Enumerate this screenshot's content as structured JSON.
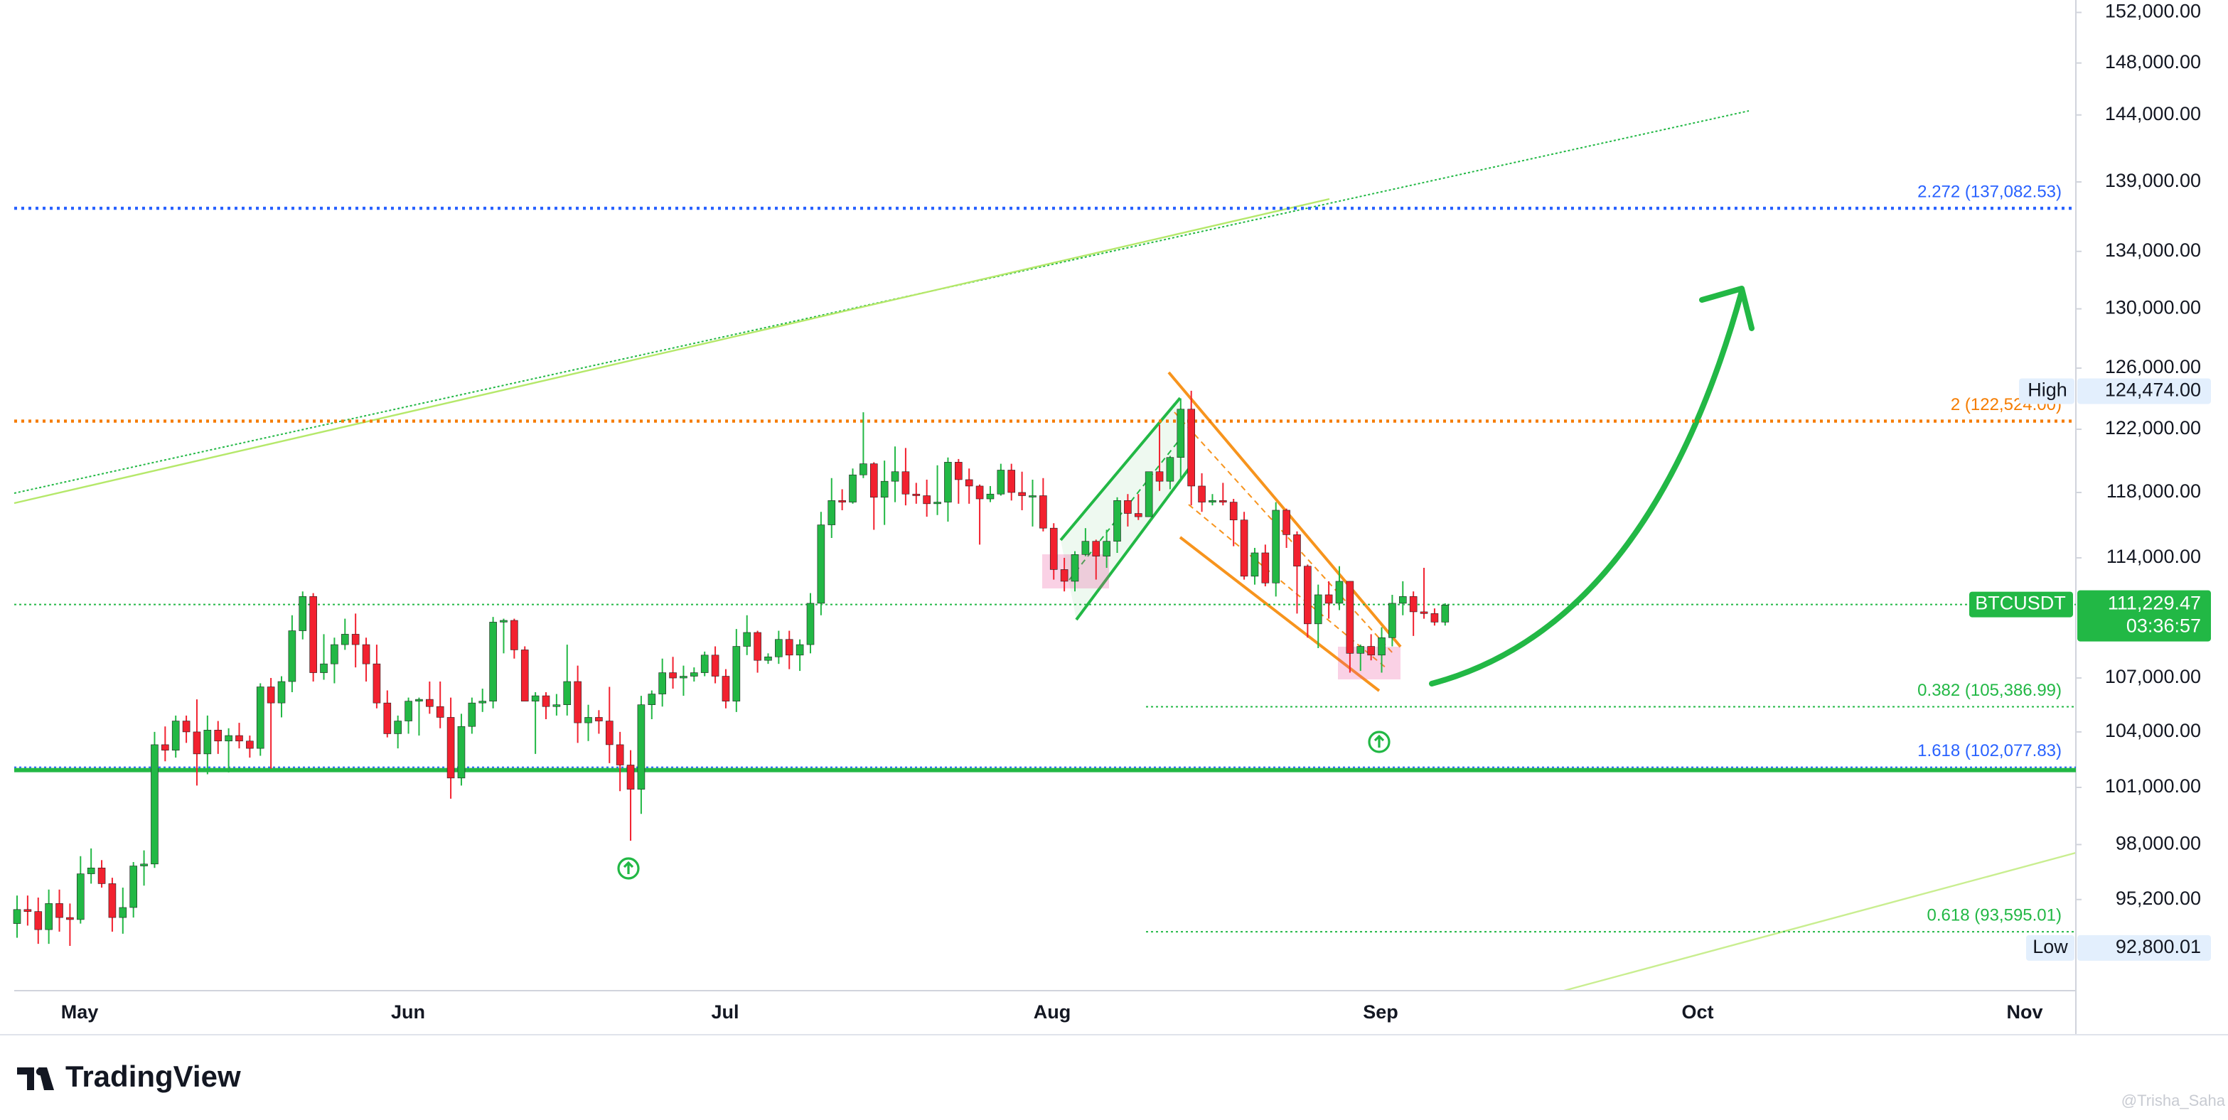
{
  "chart_data": {
    "type": "candlestick",
    "symbol": "BTCUSDT",
    "log": true,
    "ylim": [
      90800,
      153000
    ],
    "yticks": [
      {
        "value": 152000,
        "label": "152,000.00"
      },
      {
        "value": 148000,
        "label": "148,000.00"
      },
      {
        "value": 144000,
        "label": "144,000.00"
      },
      {
        "value": 139000,
        "label": "139,000.00"
      },
      {
        "value": 134000,
        "label": "134,000.00"
      },
      {
        "value": 130000,
        "label": "130,000.00"
      },
      {
        "value": 126000,
        "label": "126,000.00"
      },
      {
        "value": 122000,
        "label": "122,000.00"
      },
      {
        "value": 118000,
        "label": "118,000.00"
      },
      {
        "value": 114000,
        "label": "114,000.00"
      },
      {
        "value": 107000,
        "label": "107,000.00"
      },
      {
        "value": 104000,
        "label": "104,000.00"
      },
      {
        "value": 101000,
        "label": "101,000.00"
      },
      {
        "value": 98000,
        "label": "98,000.00"
      },
      {
        "value": 95200,
        "label": "95,200.00"
      }
    ],
    "x_labels": [
      "May",
      "Jun",
      "Jul",
      "Aug",
      "Sep",
      "Oct",
      "Nov"
    ],
    "up_color": "#22b845",
    "down_color": "#f2212f",
    "levels": [
      {
        "label": "2.272 (137,082.53)",
        "value": 137082.53,
        "color": "#2962ff"
      },
      {
        "label": "2 (122,524.00)",
        "value": 122524,
        "color": "#f57c00"
      },
      {
        "label": "0.382 (105,386.99)",
        "value": 105386.99,
        "color": "#22b845"
      },
      {
        "label": "1.618 (102,077.83)",
        "value": 102077.83,
        "color": "#2962ff"
      },
      {
        "label": "0.618 (93,595.01)",
        "value": 93595.01,
        "color": "#22b845"
      }
    ],
    "last_price": {
      "value": 111229.47,
      "label": "111,229.47",
      "countdown": "03:36:57"
    },
    "high": {
      "label": "High",
      "value": 124474,
      "value_label": "124,474.00"
    },
    "low": {
      "label": "Low",
      "value": 92800.01,
      "value_label": "92,800.01"
    },
    "brand": "TradingView",
    "watermark": "@Trisha_Saha",
    "candles": [
      [
        94000,
        95400,
        93300,
        94700
      ],
      [
        94700,
        95400,
        93900,
        94600
      ],
      [
        94600,
        95300,
        93000,
        93700
      ],
      [
        93700,
        95700,
        93000,
        95000
      ],
      [
        95000,
        95700,
        93600,
        94300
      ],
      [
        94300,
        95000,
        92900,
        94200
      ],
      [
        94200,
        97400,
        94000,
        96500
      ],
      [
        96500,
        97800,
        96000,
        96800
      ],
      [
        96800,
        97200,
        95800,
        96000
      ],
      [
        96000,
        96300,
        93600,
        94300
      ],
      [
        94300,
        95800,
        93500,
        94800
      ],
      [
        94800,
        97100,
        94300,
        96900
      ],
      [
        96900,
        97700,
        95900,
        97000
      ],
      [
        97000,
        104000,
        96800,
        103300
      ],
      [
        103300,
        104300,
        102400,
        103000
      ],
      [
        103000,
        104900,
        102600,
        104600
      ],
      [
        104600,
        104900,
        103400,
        104000
      ],
      [
        104000,
        105800,
        101100,
        102800
      ],
      [
        102800,
        104900,
        101700,
        104100
      ],
      [
        104100,
        104600,
        102800,
        103500
      ],
      [
        103500,
        104200,
        101800,
        103800
      ],
      [
        103800,
        104500,
        103100,
        103500
      ],
      [
        103500,
        103800,
        102600,
        103100
      ],
      [
        103100,
        106700,
        102700,
        106500
      ],
      [
        106500,
        107000,
        102000,
        105600
      ],
      [
        105600,
        107100,
        104800,
        106800
      ],
      [
        106800,
        110600,
        106200,
        109700
      ],
      [
        109700,
        112000,
        109200,
        111700
      ],
      [
        111700,
        111900,
        106800,
        107300
      ],
      [
        107300,
        109500,
        106900,
        107800
      ],
      [
        107800,
        109300,
        106700,
        108900
      ],
      [
        108900,
        110400,
        108600,
        109500
      ],
      [
        109500,
        110700,
        107600,
        108900
      ],
      [
        108900,
        109300,
        106800,
        107800
      ],
      [
        107800,
        108900,
        105300,
        105600
      ],
      [
        105600,
        106300,
        103700,
        103900
      ],
      [
        103900,
        104900,
        103100,
        104600
      ],
      [
        104600,
        105900,
        103900,
        105700
      ],
      [
        105700,
        105900,
        103800,
        105800
      ],
      [
        105800,
        106800,
        105000,
        105400
      ],
      [
        105400,
        106800,
        104200,
        104800
      ],
      [
        104800,
        105900,
        100400,
        101500
      ],
      [
        101500,
        105000,
        101100,
        104300
      ],
      [
        104300,
        105900,
        103900,
        105600
      ],
      [
        105600,
        106400,
        105100,
        105700
      ],
      [
        105700,
        110500,
        105300,
        110200
      ],
      [
        110200,
        110400,
        108400,
        110300
      ],
      [
        110300,
        110400,
        108100,
        108600
      ],
      [
        108600,
        108800,
        105700,
        105700
      ],
      [
        105700,
        106200,
        102800,
        106000
      ],
      [
        106000,
        106200,
        104700,
        105400
      ],
      [
        105400,
        106100,
        104900,
        105500
      ],
      [
        105500,
        108900,
        104900,
        106800
      ],
      [
        106800,
        107700,
        103400,
        104500
      ],
      [
        104500,
        105500,
        103500,
        104800
      ],
      [
        104800,
        105200,
        103900,
        104600
      ],
      [
        104600,
        106500,
        102300,
        103300
      ],
      [
        103300,
        104000,
        100800,
        102200
      ],
      [
        102200,
        103000,
        98200,
        100900
      ],
      [
        100900,
        106000,
        99600,
        105500
      ],
      [
        105500,
        106300,
        104700,
        106100
      ],
      [
        106100,
        108100,
        105400,
        107300
      ],
      [
        107300,
        108200,
        106400,
        107000
      ],
      [
        107000,
        107700,
        106000,
        107100
      ],
      [
        107100,
        107600,
        106800,
        107300
      ],
      [
        107300,
        108500,
        107100,
        108300
      ],
      [
        108300,
        108800,
        106700,
        107100
      ],
      [
        107100,
        107500,
        105300,
        105700
      ],
      [
        105700,
        109800,
        105100,
        108800
      ],
      [
        108800,
        110600,
        108300,
        109600
      ],
      [
        109600,
        109700,
        107300,
        108000
      ],
      [
        108000,
        108400,
        107800,
        108200
      ],
      [
        108200,
        109700,
        107800,
        109200
      ],
      [
        109200,
        109700,
        107500,
        108300
      ],
      [
        108300,
        109200,
        107400,
        108900
      ],
      [
        108900,
        111900,
        108400,
        111300
      ],
      [
        111300,
        116800,
        110600,
        116000
      ],
      [
        116000,
        118900,
        115200,
        117500
      ],
      [
        117500,
        118200,
        116900,
        117400
      ],
      [
        117400,
        119500,
        117300,
        119100
      ],
      [
        119100,
        123100,
        118900,
        119800
      ],
      [
        119800,
        119900,
        115700,
        117700
      ],
      [
        117700,
        120000,
        116000,
        118700
      ],
      [
        118700,
        120900,
        117400,
        119300
      ],
      [
        119300,
        120800,
        117200,
        117900
      ],
      [
        117900,
        118600,
        117300,
        117800
      ],
      [
        117800,
        118800,
        116500,
        117300
      ],
      [
        117300,
        119700,
        116600,
        117400
      ],
      [
        117400,
        120200,
        116200,
        119900
      ],
      [
        119900,
        120100,
        117300,
        118800
      ],
      [
        118800,
        119500,
        117300,
        118400
      ],
      [
        118400,
        118500,
        114800,
        117600
      ],
      [
        117600,
        118400,
        117400,
        117900
      ],
      [
        117900,
        119800,
        117800,
        119400
      ],
      [
        119400,
        119800,
        117500,
        118000
      ],
      [
        118000,
        119300,
        116900,
        117800
      ],
      [
        117800,
        118800,
        115900,
        117800
      ],
      [
        117800,
        118900,
        115600,
        115800
      ],
      [
        115800,
        116100,
        112700,
        113300
      ],
      [
        113300,
        114000,
        112000,
        112600
      ],
      [
        112600,
        114400,
        112000,
        114200
      ],
      [
        114200,
        115800,
        114100,
        115000
      ],
      [
        115000,
        115100,
        112700,
        114100
      ],
      [
        114100,
        115700,
        113400,
        115000
      ],
      [
        115000,
        117700,
        114300,
        117500
      ],
      [
        117500,
        117900,
        115900,
        116700
      ],
      [
        116700,
        117900,
        116300,
        116500
      ],
      [
        116500,
        119300,
        116500,
        119300
      ],
      [
        119300,
        122300,
        118100,
        118700
      ],
      [
        118700,
        120300,
        118200,
        120200
      ],
      [
        120200,
        124000,
        118900,
        123300
      ],
      [
        123300,
        124500,
        117200,
        118400
      ],
      [
        118400,
        119200,
        116800,
        117400
      ],
      [
        117400,
        117900,
        117200,
        117500
      ],
      [
        117500,
        118600,
        117200,
        117400
      ],
      [
        117400,
        117600,
        114700,
        116300
      ],
      [
        116300,
        116800,
        112700,
        112900
      ],
      [
        112900,
        114600,
        112400,
        114300
      ],
      [
        114300,
        114800,
        112300,
        112500
      ],
      [
        112500,
        117400,
        111700,
        116900
      ],
      [
        116900,
        117000,
        114600,
        115400
      ],
      [
        115400,
        115600,
        110700,
        113500
      ],
      [
        113500,
        113600,
        109300,
        110100
      ],
      [
        110100,
        112400,
        108700,
        111800
      ],
      [
        111800,
        112600,
        110400,
        111300
      ],
      [
        111300,
        113500,
        110900,
        112600
      ],
      [
        112600,
        112600,
        107300,
        108400
      ],
      [
        108400,
        108900,
        107400,
        108800
      ],
      [
        108800,
        109500,
        108000,
        108300
      ],
      [
        108300,
        109900,
        107300,
        109300
      ],
      [
        109300,
        111800,
        108800,
        111300
      ],
      [
        111300,
        112600,
        110600,
        111700
      ],
      [
        111700,
        112000,
        109400,
        110800
      ],
      [
        110800,
        113400,
        110400,
        110700
      ],
      [
        110700,
        111000,
        110000,
        110200
      ],
      [
        110200,
        111300,
        110000,
        111200
      ]
    ]
  }
}
